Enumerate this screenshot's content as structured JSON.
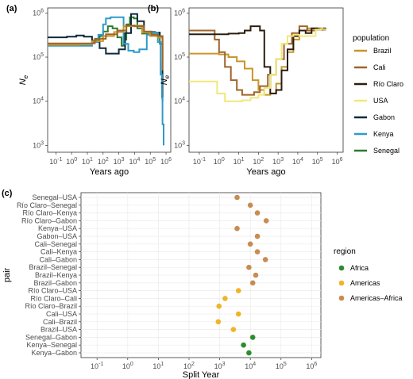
{
  "colors": {
    "Brazil": "#c8962a",
    "Cali": "#a0642a",
    "Río Claro": "#2b1d0e",
    "USA": "#f0e878",
    "Gabon": "#0d2a3a",
    "Kenya": "#2e9ac8",
    "Senegal": "#2b7a2e",
    "Africa": "#2e8b2e",
    "Americas": "#f0b428",
    "Americas–Africa": "#c88c50"
  },
  "chart_data": [
    {
      "panel": "(a)",
      "type": "line",
      "xlabel": "Years ago",
      "ylabel": "Ne",
      "x_scale": "log",
      "y_scale": "log",
      "xlim": [
        0.03,
        2000000
      ],
      "ylim": [
        700,
        1300000
      ],
      "x_ticks": [
        "10^-1",
        "10^0",
        "10^1",
        "10^2",
        "10^3",
        "10^4",
        "10^5",
        "10^6"
      ],
      "y_ticks": [
        "10^3",
        "10^4",
        "10^5",
        "10^6"
      ],
      "series": [
        {
          "name": "Senegal",
          "x": [
            0.03,
            3,
            20,
            60,
            100,
            200,
            400,
            800,
            1500,
            2000,
            3000,
            5000,
            9000,
            15000,
            30000,
            60000,
            100000,
            300000,
            400000,
            600000
          ],
          "y": [
            200000,
            200000,
            240000,
            300000,
            380000,
            500000,
            450000,
            280000,
            180000,
            250000,
            550000,
            800000,
            750000,
            450000,
            340000,
            350000,
            330000,
            330000,
            200000,
            30000
          ]
        },
        {
          "name": "Gabon",
          "x": [
            0.03,
            0.5,
            2,
            6,
            20,
            60,
            150,
            400,
            1000,
            2500,
            6000,
            15000,
            40000,
            100000,
            200000,
            400000,
            600000
          ],
          "y": [
            280000,
            290000,
            310000,
            290000,
            230000,
            160000,
            120000,
            120000,
            150000,
            350000,
            950000,
            650000,
            360000,
            370000,
            360000,
            300000,
            10000
          ]
        },
        {
          "name": "Kenya",
          "x": [
            0.03,
            3,
            20,
            50,
            100,
            150,
            300,
            800,
            1500,
            2000,
            4000,
            9000,
            20000,
            60000,
            150000,
            300000,
            450000,
            550000,
            600000,
            700000
          ],
          "y": [
            180000,
            180000,
            220000,
            320000,
            550000,
            750000,
            800000,
            800000,
            800000,
            200000,
            140000,
            130000,
            150000,
            320000,
            360000,
            220000,
            40000,
            12000,
            3000,
            1000
          ]
        },
        {
          "name": "Brazil",
          "x": [
            0.03,
            3,
            20,
            100,
            500,
            2000,
            8000,
            30000,
            100000,
            300000,
            600000
          ],
          "y": [
            190000,
            195000,
            230000,
            300000,
            370000,
            500000,
            520000,
            360000,
            300000,
            280000,
            80000
          ]
        },
        {
          "name": "Cali",
          "x": [
            0.03,
            5,
            30,
            150,
            800,
            3000,
            10000,
            40000,
            120000,
            300000,
            600000
          ],
          "y": [
            205000,
            205000,
            260000,
            330000,
            400000,
            520000,
            500000,
            380000,
            320000,
            300000,
            50000
          ]
        }
      ]
    },
    {
      "panel": "(b)",
      "type": "line",
      "xlabel": "Years ago",
      "ylabel": "Ne",
      "x_scale": "log",
      "y_scale": "log",
      "xlim": [
        0.03,
        2000000
      ],
      "ylim": [
        700,
        1300000
      ],
      "x_ticks": [
        "10^-1",
        "10^0",
        "10^1",
        "10^2",
        "10^3",
        "10^4",
        "10^5",
        "10^6"
      ],
      "y_ticks": [
        "10^3",
        "10^4",
        "10^5",
        "10^6"
      ],
      "legend_title": "population",
      "legend": [
        "Brazil",
        "Cali",
        "Río Claro",
        "USA",
        "Gabon",
        "Kenya",
        "Senegal"
      ],
      "series": [
        {
          "name": "Brazil",
          "x": [
            0.03,
            1,
            3,
            8,
            20,
            50,
            100,
            200,
            400,
            800,
            1500,
            3000,
            6000,
            12000,
            30000,
            80000,
            150000,
            250000
          ],
          "y": [
            120000,
            115000,
            100000,
            80000,
            55000,
            30000,
            18000,
            14000,
            15000,
            25000,
            60000,
            130000,
            250000,
            400000,
            450000,
            420000,
            420000,
            430000
          ]
        },
        {
          "name": "Cali",
          "x": [
            0.03,
            0.3,
            0.6,
            1,
            2,
            4,
            8,
            15,
            30,
            60,
            120,
            300,
            800,
            2000,
            5000,
            12000,
            30000,
            80000,
            150000,
            250000
          ],
          "y": [
            400000,
            400000,
            250000,
            130000,
            60000,
            30000,
            18000,
            14000,
            14000,
            16000,
            22000,
            40000,
            90000,
            200000,
            350000,
            500000,
            400000,
            450000,
            420000,
            430000
          ]
        },
        {
          "name": "Río Claro",
          "x": [
            0.03,
            3,
            10,
            20,
            40,
            70,
            120,
            200,
            400,
            800,
            1500,
            3000,
            6000,
            12000,
            25000,
            50000,
            100000,
            200000,
            250000
          ],
          "y": [
            330000,
            340000,
            350000,
            400000,
            500000,
            500000,
            400000,
            60000,
            15000,
            18000,
            50000,
            150000,
            300000,
            400000,
            350000,
            450000,
            420000,
            450000,
            430000
          ]
        },
        {
          "name": "USA",
          "x": [
            0.03,
            0.3,
            0.8,
            2,
            6,
            15,
            40,
            100,
            200,
            400,
            800,
            1500,
            3000,
            6000,
            12000,
            30000,
            80000,
            150000,
            250000
          ],
          "y": [
            28000,
            28000,
            15000,
            10000,
            10000,
            10500,
            12000,
            14000,
            20000,
            40000,
            90000,
            200000,
            300000,
            320000,
            300000,
            300000,
            420000,
            430000,
            440000
          ]
        }
      ]
    },
    {
      "panel": "(c)",
      "type": "scatter",
      "xlabel": "Split Year",
      "ylabel": "pair",
      "x_scale": "log",
      "xlim": [
        0.03,
        2000000
      ],
      "x_ticks": [
        "10^-1",
        "10^0",
        "10^1",
        "10^2",
        "10^3",
        "10^4",
        "10^5",
        "10^6"
      ],
      "legend_title": "region",
      "legend": [
        "Africa",
        "Americas",
        "Americas–Africa"
      ],
      "points": [
        {
          "pair": "Senegal–USA",
          "year": 3700,
          "region": "Americas–Africa"
        },
        {
          "pair": "Río Claro–Senegal",
          "year": 10000,
          "region": "Americas–Africa"
        },
        {
          "pair": "Río Claro–Kenya",
          "year": 17000,
          "region": "Americas–Africa"
        },
        {
          "pair": "Río Claro–Gabon",
          "year": 33000,
          "region": "Americas–Africa"
        },
        {
          "pair": "Kenya–USA",
          "year": 3700,
          "region": "Americas–Africa"
        },
        {
          "pair": "Gabon–USA",
          "year": 17000,
          "region": "Americas–Africa"
        },
        {
          "pair": "Cali–Senegal",
          "year": 10000,
          "region": "Americas–Africa"
        },
        {
          "pair": "Cali–Kenya",
          "year": 17000,
          "region": "Americas–Africa"
        },
        {
          "pair": "Cali–Gabon",
          "year": 31000,
          "region": "Americas–Africa"
        },
        {
          "pair": "Brazil–Senegal",
          "year": 9000,
          "region": "Americas–Africa"
        },
        {
          "pair": "Brazil–Kenya",
          "year": 15000,
          "region": "Americas–Africa"
        },
        {
          "pair": "Brazil–Gabon",
          "year": 12000,
          "region": "Americas–Africa"
        },
        {
          "pair": "Río Claro–USA",
          "year": 4100,
          "region": "Americas"
        },
        {
          "pair": "Río Claro–Cali",
          "year": 1500,
          "region": "Americas"
        },
        {
          "pair": "Río Claro–Brazil",
          "year": 950,
          "region": "Americas"
        },
        {
          "pair": "Cali–USA",
          "year": 4100,
          "region": "Americas"
        },
        {
          "pair": "Cali–Brazil",
          "year": 900,
          "region": "Americas"
        },
        {
          "pair": "Brazil–USA",
          "year": 2800,
          "region": "Americas"
        },
        {
          "pair": "Senegal–Gabon",
          "year": 12000,
          "region": "Africa"
        },
        {
          "pair": "Kenya–Senegal",
          "year": 6000,
          "region": "Africa"
        },
        {
          "pair": "Kenya–Gabon",
          "year": 9000,
          "region": "Africa"
        }
      ]
    }
  ]
}
